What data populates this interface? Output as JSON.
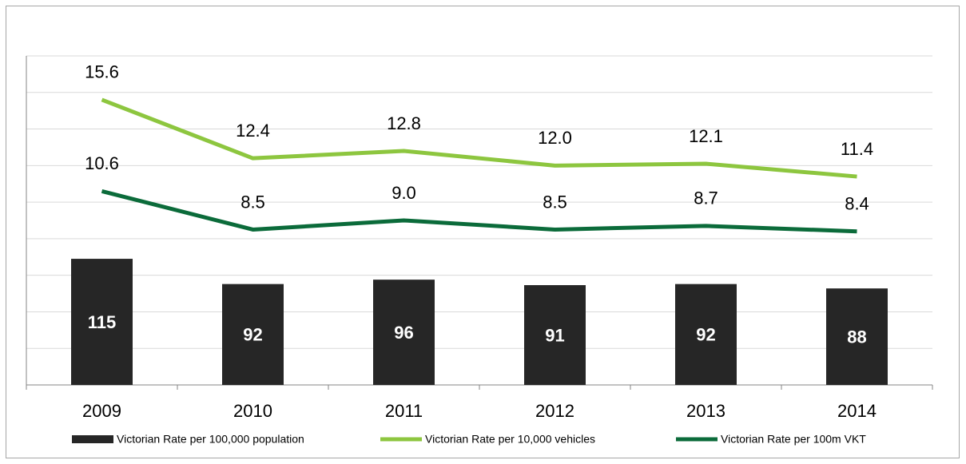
{
  "chart_data": {
    "type": "combo",
    "categories": [
      "2009",
      "2010",
      "2011",
      "2012",
      "2013",
      "2014"
    ],
    "ylim": [
      0,
      18
    ],
    "yticks": [
      0,
      2,
      4,
      6,
      8,
      10,
      12,
      14,
      16,
      18
    ],
    "y2lim": [
      0,
      300
    ],
    "grid": true,
    "series": [
      {
        "name": "Victorian Rate per 100,000 population",
        "type": "bar",
        "axis": "y2",
        "color": "#262626",
        "values": [
          115,
          92,
          96,
          91,
          92,
          88
        ]
      },
      {
        "name": "Victorian Rate per 10,000 vehicles",
        "type": "line",
        "color": "#8dc63f",
        "values": [
          15.6,
          12.4,
          12.8,
          12.0,
          12.1,
          11.4
        ],
        "value_labels": [
          "15.6",
          "12.4",
          "12.8",
          "12.0",
          "12.1",
          "11.4"
        ]
      },
      {
        "name": "Victorian Rate per 100m VKT",
        "type": "line",
        "color": "#0b6b3a",
        "values": [
          10.6,
          8.5,
          9.0,
          8.5,
          8.7,
          8.4
        ],
        "value_labels": [
          "10.6",
          "8.5",
          "9.0",
          "8.5",
          "8.7",
          "8.4"
        ]
      }
    ]
  }
}
